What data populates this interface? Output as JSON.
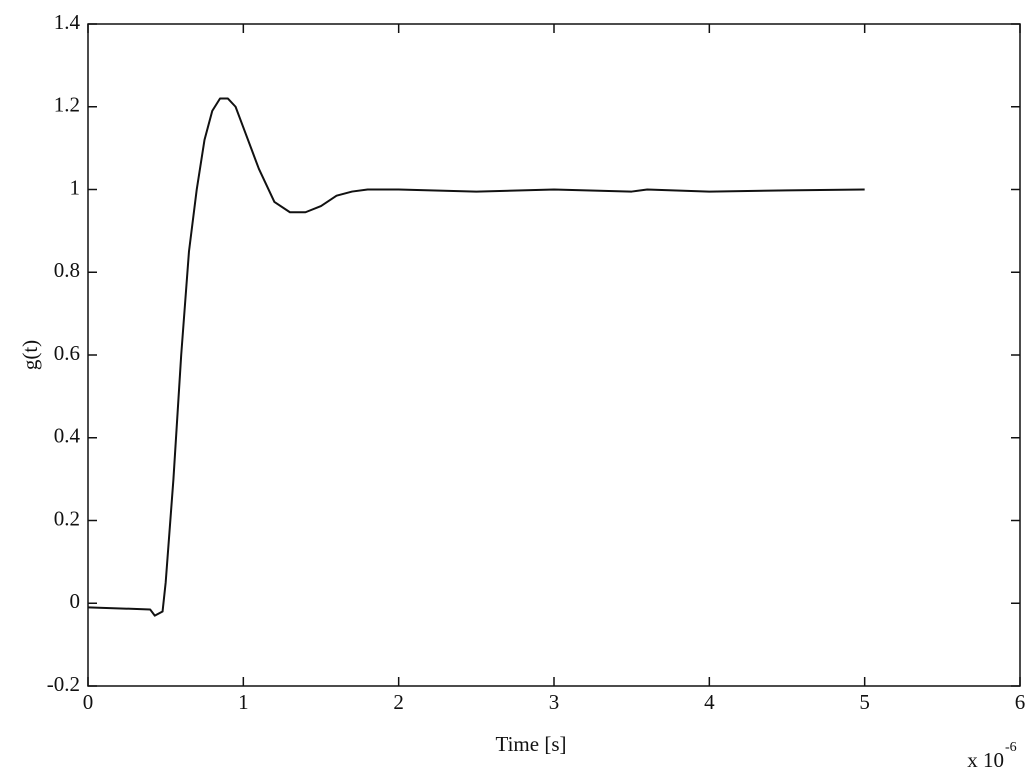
{
  "chart_data": {
    "type": "line",
    "x_label": "Time [s]",
    "y_label": "g(t)",
    "x_scale_label": {
      "base": "x 10",
      "exponent": "-6"
    },
    "x": [
      0,
      0.4,
      0.43,
      0.48,
      0.5,
      0.55,
      0.6,
      0.65,
      0.7,
      0.75,
      0.8,
      0.85,
      0.9,
      0.95,
      1.0,
      1.1,
      1.2,
      1.3,
      1.4,
      1.5,
      1.6,
      1.7,
      1.8,
      2.0,
      2.5,
      3.0,
      3.5,
      3.6,
      4.0,
      4.5,
      5.0
    ],
    "series": [
      {
        "color": "#111111",
        "values": [
          -0.01,
          -0.015,
          -0.03,
          -0.02,
          0.05,
          0.3,
          0.6,
          0.85,
          1.0,
          1.12,
          1.19,
          1.22,
          1.22,
          1.2,
          1.15,
          1.05,
          0.97,
          0.945,
          0.945,
          0.96,
          0.985,
          0.995,
          1.0,
          1.0,
          0.995,
          1.0,
          0.995,
          1.0,
          0.995,
          0.998,
          1.0
        ]
      }
    ],
    "xlim": [
      0,
      6
    ],
    "xticks": [
      0,
      1,
      2,
      3,
      4,
      5,
      6
    ],
    "ylim": [
      -0.2,
      1.4
    ],
    "yticks": [
      -0.2,
      0,
      0.2,
      0.4,
      0.6,
      0.8,
      1,
      1.2,
      1.4
    ],
    "grid": false
  }
}
